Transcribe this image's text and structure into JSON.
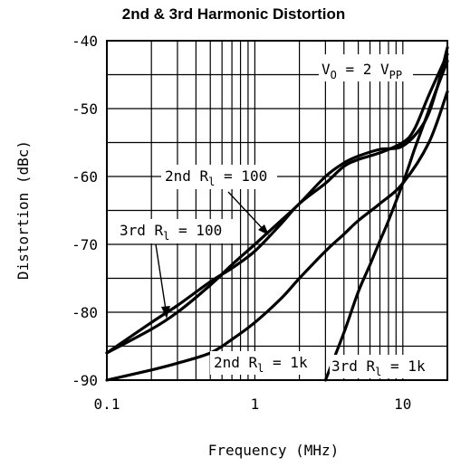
{
  "chart_data": {
    "type": "line",
    "title": "2nd & 3rd Harmonic Distortion",
    "xlabel": "Frequency (MHz)",
    "ylabel": "Distortion (dBc)",
    "x_scale": "log",
    "xlim": [
      0.1,
      20
    ],
    "ylim": [
      -90,
      -40
    ],
    "x_ticks": [
      {
        "value": 0.1,
        "label": "0.1"
      },
      {
        "value": 1,
        "label": "1"
      },
      {
        "value": 10,
        "label": "10"
      }
    ],
    "y_ticks": [
      {
        "value": -40,
        "label": "-40"
      },
      {
        "value": -50,
        "label": "-50"
      },
      {
        "value": -60,
        "label": "-60"
      },
      {
        "value": -70,
        "label": "-70"
      },
      {
        "value": -80,
        "label": "-80"
      },
      {
        "value": -90,
        "label": "-90"
      }
    ],
    "grid": true,
    "series": [
      {
        "name": "2nd R_l = 100",
        "x": [
          0.1,
          0.2,
          0.3,
          0.5,
          0.7,
          1,
          1.5,
          2,
          3,
          4,
          5,
          7,
          10,
          14,
          17,
          20
        ],
        "y": [
          -86,
          -82.5,
          -80,
          -76,
          -73,
          -70,
          -66.5,
          -64,
          -60,
          -58,
          -57,
          -56,
          -55.5,
          -52,
          -47,
          -41
        ]
      },
      {
        "name": "3rd R_l = 100",
        "x": [
          0.1,
          0.2,
          0.3,
          0.5,
          0.7,
          1,
          1.5,
          2,
          3,
          4,
          5,
          7,
          10,
          12,
          15,
          20
        ],
        "y": [
          -86,
          -81.5,
          -79,
          -75.5,
          -73.5,
          -71,
          -67,
          -64,
          -61,
          -58.5,
          -57.5,
          -56.5,
          -55,
          -53,
          -48,
          -42
        ]
      },
      {
        "name": "2nd R_l = 1k",
        "x": [
          0.1,
          0.2,
          0.3,
          0.5,
          0.7,
          1,
          1.5,
          2,
          3,
          4,
          5,
          7,
          10,
          15,
          20
        ],
        "y": [
          -90,
          -88.5,
          -87.5,
          -86,
          -84,
          -81.5,
          -78,
          -75,
          -71,
          -68.5,
          -66.5,
          -64,
          -61,
          -55,
          -47.5
        ]
      },
      {
        "name": "3rd R_l = 1k",
        "x": [
          3,
          4,
          5,
          6,
          7,
          8,
          10,
          12,
          14,
          17,
          20
        ],
        "y": [
          -90,
          -83,
          -77,
          -73,
          -69.5,
          -66.5,
          -61,
          -56,
          -52,
          -47,
          -43
        ]
      }
    ],
    "annotations": {
      "condition": {
        "main": "V",
        "sub1": "O",
        "mid": " = 2 V",
        "sub2": "PP"
      },
      "labels": [
        {
          "main": "2nd R",
          "sub": "l",
          "rest": " = 100"
        },
        {
          "main": "3rd R",
          "sub": "l",
          "rest": " = 100"
        },
        {
          "main": "2nd R",
          "sub": "l",
          "rest": " = 1k"
        },
        {
          "main": "3rd R",
          "sub": "l",
          "rest": " = 1k"
        }
      ]
    }
  }
}
